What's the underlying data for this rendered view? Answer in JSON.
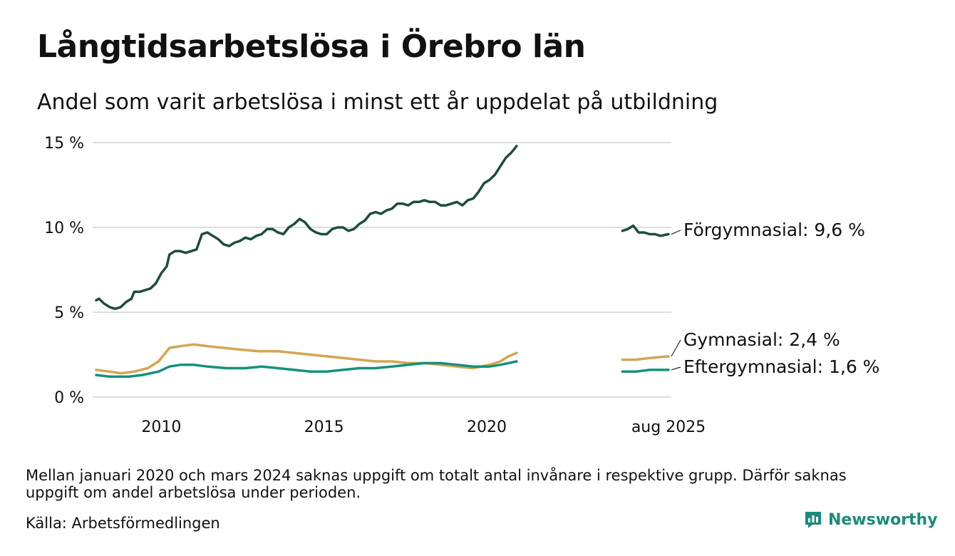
{
  "header": {
    "title": "Långtidsarbetslösa i Örebro län",
    "subtitle": "Andel som varit arbetslösa i minst ett år uppdelat på utbildning"
  },
  "footer": {
    "note": "Mellan januari 2020 och mars 2024 saknas uppgift om totalt antal invånare i respektive grupp. Därför saknas uppgift om andel arbetslösa under perioden.",
    "source": "Källa: Arbetsförmedlingen",
    "brand": "Newsworthy"
  },
  "colors": {
    "forgymnasial": "#1e4d3d",
    "gymnasial": "#d4a553",
    "eftergymnasial": "#14917f",
    "grid": "#dddddd",
    "brand": "#1d8a7a"
  },
  "icons": {
    "brand": "bar-chart-speech-bubble-icon"
  },
  "chart_data": {
    "type": "line",
    "title": "Långtidsarbetslösa i Örebro län",
    "x_ticks": [
      "2010",
      "2015",
      "2020",
      "aug 2025"
    ],
    "y_ticks": [
      "0 %",
      "5 %",
      "10 %",
      "15 %"
    ],
    "ylim": [
      0,
      15
    ],
    "xlim": [
      "2008-01",
      "2025-08"
    ],
    "grid": true,
    "missing_period": [
      "2021-01",
      "2024-02"
    ],
    "series": [
      {
        "name": "Förgymnasial",
        "end_label": "Förgymnasial: 9,6 %",
        "color": "#1e4d3d",
        "points": [
          [
            "2008-01",
            5.7
          ],
          [
            "2008-02",
            5.8
          ],
          [
            "2008-04",
            5.5
          ],
          [
            "2008-06",
            5.3
          ],
          [
            "2008-08",
            5.2
          ],
          [
            "2008-10",
            5.3
          ],
          [
            "2008-12",
            5.6
          ],
          [
            "2009-02",
            5.8
          ],
          [
            "2009-03",
            6.2
          ],
          [
            "2009-05",
            6.2
          ],
          [
            "2009-07",
            6.3
          ],
          [
            "2009-09",
            6.4
          ],
          [
            "2009-11",
            6.7
          ],
          [
            "2010-01",
            7.3
          ],
          [
            "2010-03",
            7.7
          ],
          [
            "2010-04",
            8.4
          ],
          [
            "2010-06",
            8.6
          ],
          [
            "2010-08",
            8.6
          ],
          [
            "2010-10",
            8.5
          ],
          [
            "2010-12",
            8.6
          ],
          [
            "2011-02",
            8.7
          ],
          [
            "2011-04",
            9.6
          ],
          [
            "2011-06",
            9.7
          ],
          [
            "2011-08",
            9.5
          ],
          [
            "2011-10",
            9.3
          ],
          [
            "2011-12",
            9.0
          ],
          [
            "2012-02",
            8.9
          ],
          [
            "2012-04",
            9.1
          ],
          [
            "2012-06",
            9.2
          ],
          [
            "2012-08",
            9.4
          ],
          [
            "2012-10",
            9.3
          ],
          [
            "2012-12",
            9.5
          ],
          [
            "2013-02",
            9.6
          ],
          [
            "2013-04",
            9.9
          ],
          [
            "2013-06",
            9.9
          ],
          [
            "2013-08",
            9.7
          ],
          [
            "2013-10",
            9.6
          ],
          [
            "2013-12",
            10.0
          ],
          [
            "2014-02",
            10.2
          ],
          [
            "2014-04",
            10.5
          ],
          [
            "2014-06",
            10.3
          ],
          [
            "2014-08",
            9.9
          ],
          [
            "2014-10",
            9.7
          ],
          [
            "2014-12",
            9.6
          ],
          [
            "2015-02",
            9.6
          ],
          [
            "2015-04",
            9.9
          ],
          [
            "2015-06",
            10.0
          ],
          [
            "2015-08",
            10.0
          ],
          [
            "2015-10",
            9.8
          ],
          [
            "2015-12",
            9.9
          ],
          [
            "2016-02",
            10.2
          ],
          [
            "2016-04",
            10.4
          ],
          [
            "2016-06",
            10.8
          ],
          [
            "2016-08",
            10.9
          ],
          [
            "2016-10",
            10.8
          ],
          [
            "2016-12",
            11.0
          ],
          [
            "2017-02",
            11.1
          ],
          [
            "2017-04",
            11.4
          ],
          [
            "2017-06",
            11.4
          ],
          [
            "2017-08",
            11.3
          ],
          [
            "2017-10",
            11.5
          ],
          [
            "2017-12",
            11.5
          ],
          [
            "2018-02",
            11.6
          ],
          [
            "2018-04",
            11.5
          ],
          [
            "2018-06",
            11.5
          ],
          [
            "2018-08",
            11.3
          ],
          [
            "2018-10",
            11.3
          ],
          [
            "2018-12",
            11.4
          ],
          [
            "2019-02",
            11.5
          ],
          [
            "2019-04",
            11.3
          ],
          [
            "2019-06",
            11.6
          ],
          [
            "2019-08",
            11.7
          ],
          [
            "2019-10",
            12.1
          ],
          [
            "2019-12",
            12.6
          ],
          [
            "2020-02",
            12.8
          ],
          [
            "2020-04",
            13.1
          ],
          [
            "2020-06",
            13.6
          ],
          [
            "2020-08",
            14.1
          ],
          [
            "2020-10",
            14.4
          ],
          [
            "2020-12",
            14.8
          ]
        ],
        "points_after_gap": [
          [
            "2024-03",
            9.8
          ],
          [
            "2024-05",
            9.9
          ],
          [
            "2024-07",
            10.1
          ],
          [
            "2024-09",
            9.7
          ],
          [
            "2024-11",
            9.7
          ],
          [
            "2025-01",
            9.6
          ],
          [
            "2025-03",
            9.6
          ],
          [
            "2025-05",
            9.5
          ],
          [
            "2025-08",
            9.6
          ]
        ]
      },
      {
        "name": "Gymnasial",
        "end_label": "Gymnasial: 2,4 %",
        "color": "#d4a553",
        "points": [
          [
            "2008-01",
            1.6
          ],
          [
            "2008-06",
            1.5
          ],
          [
            "2008-10",
            1.4
          ],
          [
            "2009-03",
            1.5
          ],
          [
            "2009-08",
            1.7
          ],
          [
            "2009-12",
            2.1
          ],
          [
            "2010-04",
            2.9
          ],
          [
            "2010-08",
            3.0
          ],
          [
            "2011-01",
            3.1
          ],
          [
            "2011-06",
            3.0
          ],
          [
            "2011-12",
            2.9
          ],
          [
            "2012-06",
            2.8
          ],
          [
            "2013-01",
            2.7
          ],
          [
            "2013-08",
            2.7
          ],
          [
            "2014-02",
            2.6
          ],
          [
            "2014-08",
            2.5
          ],
          [
            "2015-02",
            2.4
          ],
          [
            "2015-08",
            2.3
          ],
          [
            "2016-02",
            2.2
          ],
          [
            "2016-08",
            2.1
          ],
          [
            "2017-02",
            2.1
          ],
          [
            "2017-08",
            2.0
          ],
          [
            "2018-02",
            2.0
          ],
          [
            "2018-08",
            1.9
          ],
          [
            "2019-02",
            1.8
          ],
          [
            "2019-08",
            1.7
          ],
          [
            "2020-02",
            1.9
          ],
          [
            "2020-06",
            2.1
          ],
          [
            "2020-09",
            2.4
          ],
          [
            "2020-12",
            2.6
          ]
        ],
        "points_after_gap": [
          [
            "2024-03",
            2.2
          ],
          [
            "2024-08",
            2.2
          ],
          [
            "2025-01",
            2.3
          ],
          [
            "2025-08",
            2.4
          ]
        ]
      },
      {
        "name": "Eftergymnasial",
        "end_label": "Eftergymnasial: 1,6 %",
        "color": "#14917f",
        "points": [
          [
            "2008-01",
            1.3
          ],
          [
            "2008-06",
            1.2
          ],
          [
            "2009-01",
            1.2
          ],
          [
            "2009-06",
            1.3
          ],
          [
            "2009-12",
            1.5
          ],
          [
            "2010-04",
            1.8
          ],
          [
            "2010-08",
            1.9
          ],
          [
            "2011-01",
            1.9
          ],
          [
            "2011-06",
            1.8
          ],
          [
            "2012-01",
            1.7
          ],
          [
            "2012-08",
            1.7
          ],
          [
            "2013-02",
            1.8
          ],
          [
            "2013-08",
            1.7
          ],
          [
            "2014-02",
            1.6
          ],
          [
            "2014-08",
            1.5
          ],
          [
            "2015-02",
            1.5
          ],
          [
            "2015-08",
            1.6
          ],
          [
            "2016-02",
            1.7
          ],
          [
            "2016-08",
            1.7
          ],
          [
            "2017-02",
            1.8
          ],
          [
            "2017-08",
            1.9
          ],
          [
            "2018-02",
            2.0
          ],
          [
            "2018-08",
            2.0
          ],
          [
            "2019-02",
            1.9
          ],
          [
            "2019-08",
            1.8
          ],
          [
            "2020-02",
            1.8
          ],
          [
            "2020-06",
            1.9
          ],
          [
            "2020-12",
            2.1
          ]
        ],
        "points_after_gap": [
          [
            "2024-03",
            1.5
          ],
          [
            "2024-08",
            1.5
          ],
          [
            "2025-01",
            1.6
          ],
          [
            "2025-08",
            1.6
          ]
        ]
      }
    ]
  }
}
